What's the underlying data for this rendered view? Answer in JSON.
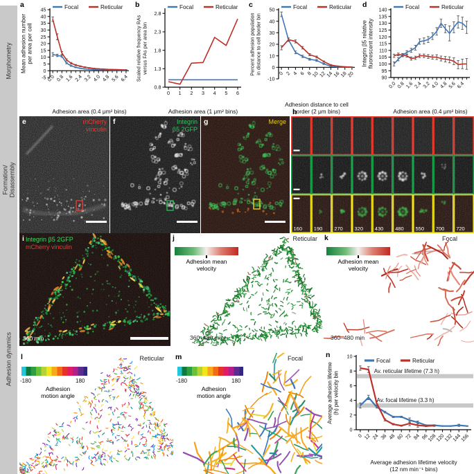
{
  "figure": {
    "sidebar_sections": [
      {
        "lines": [
          "Morphometry"
        ]
      },
      {
        "lines": [
          "Formation/",
          "Disassembly"
        ]
      },
      {
        "lines": [
          "Adhesion dynamics"
        ]
      }
    ]
  },
  "colors": {
    "focal": "#3c77b7",
    "reticular": "#be2f28",
    "band": "#c8c8c8"
  },
  "panels": {
    "e": {
      "letter": "e",
      "label_lines": [
        "mCherry",
        "vinculin"
      ],
      "label_color": "#ea3a2e"
    },
    "f": {
      "letter": "f",
      "label_lines": [
        "Integrin",
        "β5 2GFP"
      ],
      "label_color": "#35c263"
    },
    "g": {
      "letter": "g",
      "label": "Merge",
      "label_color": "#e3ce25"
    },
    "h": {
      "letter": "h",
      "times": [
        "160",
        "190",
        "270",
        "320",
        "430",
        "480",
        "550",
        "700",
        "720"
      ]
    },
    "i": {
      "letter": "i",
      "label_green": "Integrin β5 2GFP",
      "label_red": "mCherry vinculin",
      "timestamp": "360 min"
    },
    "j": {
      "letter": "j",
      "type_label": "Reticular",
      "colorbar_lines": [
        "Adhesion mean",
        "velocity"
      ],
      "timestamp": "360–480 min"
    },
    "k": {
      "letter": "k",
      "type_label": "Focal",
      "colorbar_lines": [
        "Adhesion mean",
        "velocity"
      ],
      "timestamp": "360–480 min"
    },
    "l": {
      "letter": "l",
      "type_label": "Reticular",
      "colorbar_lines": [
        "Adhesion",
        "motion angle"
      ],
      "cb_min": "-180",
      "cb_max": "180"
    },
    "m": {
      "letter": "m",
      "type_label": "Focal",
      "colorbar_lines": [
        "Adhesion",
        "motion angle"
      ],
      "cb_min": "-180",
      "cb_max": "180"
    }
  },
  "chart_data": [
    {
      "id": "a",
      "letter": "a",
      "type": "line",
      "ylabel_lines": [
        "Mean adhesion number",
        "per area per cell"
      ],
      "xlabel_lines": [
        "Adhesion area (0.4 μm² bins)"
      ],
      "xlim": [
        -0.25,
        6.65
      ],
      "ylim": [
        -5,
        45
      ],
      "baseline": 0,
      "yticks": [
        -5,
        0,
        5,
        10,
        15,
        20,
        25,
        30,
        35,
        40,
        45
      ],
      "xticks": [
        {
          "v": 0,
          "label": "0.0"
        },
        {
          "v": 0.8,
          "label": "0.8"
        },
        {
          "v": 1.6,
          "label": "1.6"
        },
        {
          "v": 2.4,
          "label": "2.4"
        },
        {
          "v": 3.2,
          "label": "3.2"
        },
        {
          "v": 4.0,
          "label": "4.0"
        },
        {
          "v": 4.8,
          "label": "4.8"
        },
        {
          "v": 5.6,
          "label": "5.6"
        },
        {
          "v": 6.4,
          "label": "6.4"
        }
      ],
      "xminor": [
        0.4,
        1.2,
        2.0,
        2.8,
        3.6,
        4.4,
        5.2,
        6.0
      ],
      "x": [
        0,
        0.4,
        0.8,
        1.2,
        1.6,
        2.0,
        2.4,
        2.8,
        3.2,
        3.6,
        4.0,
        4.4,
        4.8,
        5.2,
        5.6,
        6.0,
        6.4
      ],
      "series": [
        {
          "name": "Focal",
          "color": "#3c77b7",
          "values": [
            12,
            11.3,
            10.6,
            5.6,
            3.6,
            2.5,
            1.8,
            1.3,
            1,
            0.8,
            0.6,
            0.5,
            0.5,
            0.4,
            0.4,
            0.3,
            0.3
          ],
          "err": [
            1.3,
            0.9,
            0.8,
            0.5,
            0.4,
            0.3,
            0.2,
            0.2,
            0.1,
            0.1,
            0.1,
            0.1,
            0.1,
            0.1,
            0.1,
            0.1,
            0.1
          ]
        },
        {
          "name": "Reticular",
          "color": "#be2f28",
          "values": [
            38,
            25,
            13,
            8,
            5.5,
            4.2,
            3.3,
            2.6,
            2.1,
            1.7,
            1.4,
            1.2,
            1,
            0.9,
            0.8,
            0.7,
            0.6
          ],
          "err": [
            1.6,
            2.2,
            1.1,
            0.8,
            0.6,
            0.4,
            0.3,
            0.3,
            0.2,
            0.2,
            0.2,
            0.1,
            0.1,
            0.1,
            0.1,
            0.1,
            0.2
          ]
        }
      ]
    },
    {
      "id": "b",
      "letter": "b",
      "type": "line",
      "ylabel_lines": [
        "Scaled relative frequency RAs",
        "versus FAs per area bin"
      ],
      "xlabel_lines": [
        "Adhesion area (1 μm² bins)"
      ],
      "xlim": [
        -0.3,
        6.3
      ],
      "ylim": [
        0.8,
        2.9
      ],
      "baseline": 0.8,
      "yticks": [
        0.8,
        1.3,
        1.8,
        2.3,
        2.8
      ],
      "xticks": [
        {
          "v": 0,
          "label": "0"
        },
        {
          "v": 1,
          "label": "1"
        },
        {
          "v": 2,
          "label": "2"
        },
        {
          "v": 3,
          "label": "3"
        },
        {
          "v": 4,
          "label": "4"
        },
        {
          "v": 5,
          "label": "5"
        },
        {
          "v": 6,
          "label": "6"
        }
      ],
      "x": [
        0,
        1,
        2,
        3,
        4,
        5,
        6
      ],
      "series": [
        {
          "name": "Focal",
          "color": "#3c77b7",
          "values": [
            1,
            1,
            1,
            1,
            1,
            1,
            1
          ]
        },
        {
          "name": "Reticular",
          "color": "#be2f28",
          "values": [
            0.95,
            0.88,
            1.45,
            1.47,
            2.15,
            1.93,
            2.65
          ]
        }
      ]
    },
    {
      "id": "c",
      "letter": "c",
      "type": "line",
      "ylabel_lines": [
        "Percent adhesion population",
        "in distance to cell border bin"
      ],
      "xlabel_lines": [
        "Adhesion distance to cell",
        "border (2 μm bins)"
      ],
      "xlim": [
        -0.8,
        20.8
      ],
      "ylim": [
        -10,
        50
      ],
      "baseline": 0,
      "yticks": [
        -10,
        0,
        10,
        20,
        30,
        40,
        50
      ],
      "xticks": [
        {
          "v": 0,
          "label": "0"
        },
        {
          "v": 2,
          "label": "2"
        },
        {
          "v": 4,
          "label": "4"
        },
        {
          "v": 6,
          "label": "6"
        },
        {
          "v": 8,
          "label": "8"
        },
        {
          "v": 10,
          "label": "10"
        },
        {
          "v": 12,
          "label": "12"
        },
        {
          "v": 14,
          "label": "14"
        },
        {
          "v": 16,
          "label": "16"
        },
        {
          "v": 18,
          "label": "18"
        },
        {
          "v": 20,
          "label": "20"
        }
      ],
      "x": [
        0,
        2,
        4,
        6,
        8,
        10,
        12,
        14,
        16,
        18,
        20
      ],
      "series": [
        {
          "name": "Focal",
          "color": "#3c77b7",
          "values": [
            46,
            24,
            13,
            9.5,
            7,
            6,
            3,
            1,
            0.4,
            0.2,
            0.1
          ],
          "err": [
            2,
            1.5,
            1.2,
            1,
            0.8,
            0.8,
            0.5,
            0.3,
            0.2,
            0.1,
            0.1
          ]
        },
        {
          "name": "Reticular",
          "color": "#be2f28",
          "values": [
            17,
            24,
            22.5,
            17,
            11,
            9,
            5,
            2,
            1,
            0.5,
            0.3
          ],
          "err": [
            1.8,
            1.4,
            1.3,
            1.1,
            0.9,
            0.8,
            0.6,
            0.4,
            0.3,
            0.2,
            0.1
          ]
        }
      ]
    },
    {
      "id": "d",
      "letter": "d",
      "type": "line",
      "ylabel_lines": [
        "Integrin β5 relative",
        "fluorescent intensity"
      ],
      "xlabel_lines": [
        "Adhesion area (0.4 μm² bins)"
      ],
      "xlim": [
        -0.3,
        7.1
      ],
      "ylim": [
        90,
        140
      ],
      "baseline": 90,
      "yticks": [
        90,
        95,
        100,
        105,
        110,
        115,
        120,
        125,
        130,
        135,
        140
      ],
      "xticks": [
        {
          "v": 0,
          "label": "0.0"
        },
        {
          "v": 0.8,
          "label": "0.8"
        },
        {
          "v": 1.6,
          "label": "1.6"
        },
        {
          "v": 2.4,
          "label": "2.4"
        },
        {
          "v": 3.2,
          "label": "3.2"
        },
        {
          "v": 4.0,
          "label": "4.0"
        },
        {
          "v": 4.8,
          "label": "4.8"
        },
        {
          "v": 5.6,
          "label": "5.6"
        },
        {
          "v": 6.4,
          "label": "6.4"
        }
      ],
      "xminor": [
        0.4,
        1.2,
        2.0,
        2.8,
        3.6,
        4.4,
        5.2,
        6.0,
        6.8
      ],
      "x": [
        0,
        0.4,
        0.8,
        1.2,
        1.6,
        2.0,
        2.4,
        2.8,
        3.2,
        3.6,
        4.0,
        4.4,
        4.8,
        5.2,
        5.6,
        6.0,
        6.4,
        6.8
      ],
      "series": [
        {
          "name": "Focal",
          "color": "#3c77b7",
          "values": [
            100,
            103.5,
            106.5,
            108.5,
            110,
            112,
            116.5,
            117,
            118,
            120.5,
            124,
            130,
            126,
            122.5,
            127,
            131,
            130,
            127
          ],
          "err": [
            1.5,
            1.2,
            1.2,
            1.3,
            1.5,
            1.8,
            2,
            2.2,
            2.2,
            2.5,
            2.8,
            3,
            3,
            5.5,
            4,
            4.5,
            4.5,
            4.5
          ]
        },
        {
          "name": "Reticular",
          "color": "#be2f28",
          "values": [
            106,
            107,
            106.5,
            106,
            104,
            104.5,
            106,
            106,
            105.5,
            105,
            105,
            104,
            103.5,
            103,
            102,
            99.5,
            100,
            100
          ],
          "err": [
            1.2,
            1,
            1,
            1,
            1.2,
            1.2,
            1.3,
            1.3,
            1.4,
            1.5,
            1.8,
            1.8,
            2,
            2.2,
            2.5,
            3,
            3.5,
            4
          ]
        }
      ]
    },
    {
      "id": "n",
      "letter": "n",
      "type": "line",
      "ylabel_lines": [
        "Average adhesion lifetime",
        "(h) per velocity bin"
      ],
      "xlabel_lines": [
        "Average adhesion lifetime velocity",
        "(12 nm min⁻¹ bins)"
      ],
      "xlim": [
        -6,
        162
      ],
      "ylim": [
        0,
        10
      ],
      "baseline": 0,
      "yticks": [
        0,
        2,
        4,
        6,
        8,
        10
      ],
      "xticks": [
        {
          "v": 0,
          "label": "0"
        },
        {
          "v": 12,
          "label": "12"
        },
        {
          "v": 24,
          "label": "24"
        },
        {
          "v": 36,
          "label": "36"
        },
        {
          "v": 48,
          "label": "48"
        },
        {
          "v": 60,
          "label": "60"
        },
        {
          "v": 72,
          "label": "72"
        },
        {
          "v": 84,
          "label": "84"
        },
        {
          "v": 96,
          "label": "96"
        },
        {
          "v": 108,
          "label": "108"
        },
        {
          "v": 120,
          "label": "120"
        },
        {
          "v": 132,
          "label": "132"
        },
        {
          "v": 144,
          "label": "144"
        },
        {
          "v": 156,
          "label": "156"
        }
      ],
      "x": [
        0,
        12,
        24,
        36,
        48,
        60,
        72,
        84,
        96,
        108,
        120,
        132,
        144,
        156
      ],
      "bands": [
        {
          "value": 7.3,
          "label": "Av. reticular lifetime (7.3 h)",
          "label_x": 20,
          "label_y": 7.75
        },
        {
          "value": 3.3,
          "label": "Av. focal lifetime (3.3 h)",
          "label_x": 24,
          "label_y": 3.78
        }
      ],
      "series": [
        {
          "name": "Focal",
          "color": "#3c77b7",
          "values": [
            3.3,
            4.4,
            3.1,
            2.4,
            1.75,
            1.75,
            1.3,
            1.0,
            0.6,
            0.6,
            0.5,
            0.5,
            0.6,
            0.5
          ],
          "err": [
            0.35,
            0.3,
            0.15,
            0.12,
            0.1,
            0.1,
            0.3,
            0.18,
            0.08,
            0.08,
            0.05,
            0.05,
            0.15,
            0.05
          ]
        },
        {
          "name": "Reticular",
          "color": "#be2f28",
          "x": [
            0,
            12,
            24,
            36,
            48,
            60,
            72,
            84,
            96,
            108
          ],
          "values": [
            8.4,
            8.2,
            3.6,
            1.35,
            0.75,
            0.55,
            0.85,
            0.6,
            0.5,
            0.55
          ],
          "err": [
            0.3,
            0.4,
            0.3,
            0.15,
            0.1,
            0.08,
            0.3,
            0.25,
            0.08,
            0.1
          ]
        }
      ]
    }
  ]
}
